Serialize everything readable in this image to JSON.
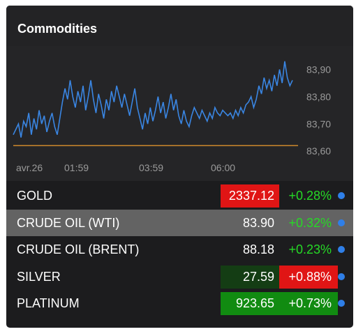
{
  "widget": {
    "title": "Commodities"
  },
  "chart_data": {
    "type": "line",
    "title": "",
    "x_tick_labels": [
      "avr.26",
      "01:59",
      "03:59",
      "06:00"
    ],
    "y_tick_labels": [
      "83,90",
      "83,80",
      "83,70",
      "83,60"
    ],
    "y_ticks": [
      83.9,
      83.8,
      83.7,
      83.6
    ],
    "ylim": [
      83.58,
      83.96
    ],
    "reference_line": 83.62,
    "grid": false,
    "series": [
      {
        "values": [
          83.66,
          83.68,
          83.7,
          83.65,
          83.71,
          83.69,
          83.74,
          83.66,
          83.72,
          83.68,
          83.75,
          83.7,
          83.73,
          83.67,
          83.71,
          83.74,
          83.69,
          83.66,
          83.72,
          83.78,
          83.83,
          83.79,
          83.86,
          83.8,
          83.76,
          83.82,
          83.78,
          83.84,
          83.75,
          83.8,
          83.86,
          83.79,
          83.74,
          83.81,
          83.77,
          83.72,
          83.79,
          83.75,
          83.82,
          83.78,
          83.84,
          83.8,
          83.76,
          83.81,
          83.77,
          83.73,
          83.78,
          83.83,
          83.76,
          83.72,
          83.68,
          83.74,
          83.7,
          83.76,
          83.71,
          83.75,
          83.8,
          83.74,
          83.78,
          83.72,
          83.76,
          83.81,
          83.75,
          83.79,
          83.73,
          83.7,
          83.75,
          83.71,
          83.69,
          83.73,
          83.76,
          83.74,
          83.72,
          83.75,
          83.73,
          83.71,
          83.74,
          83.72,
          83.76,
          83.74,
          83.73,
          83.75,
          83.74,
          83.73,
          83.74,
          83.72,
          83.75,
          83.73,
          83.76,
          83.74,
          83.77,
          83.78,
          83.8,
          83.76,
          83.79,
          83.84,
          83.81,
          83.87,
          83.83,
          83.86,
          83.82,
          83.88,
          83.84,
          83.9,
          83.85,
          83.93,
          83.87,
          83.84,
          83.86
        ]
      }
    ]
  },
  "rows": [
    {
      "name": "GOLD",
      "price": "2337.12",
      "change": "+0.28%"
    },
    {
      "name": "CRUDE OIL (WTI)",
      "price": "83.90",
      "change": "+0.32%"
    },
    {
      "name": "CRUDE OIL (BRENT)",
      "price": "88.18",
      "change": "+0.23%"
    },
    {
      "name": "SILVER",
      "price": "27.59",
      "change": "+0.88%"
    },
    {
      "name": "PLATINUM",
      "price": "923.65",
      "change": "+0.73%"
    }
  ],
  "colors": {
    "line": "#3a86e3",
    "reference": "#d08a2c",
    "positive": "#26d926",
    "price_up_bg": "#118b11",
    "price_down_bg": "#e01515",
    "dot": "#2f7fe8"
  }
}
